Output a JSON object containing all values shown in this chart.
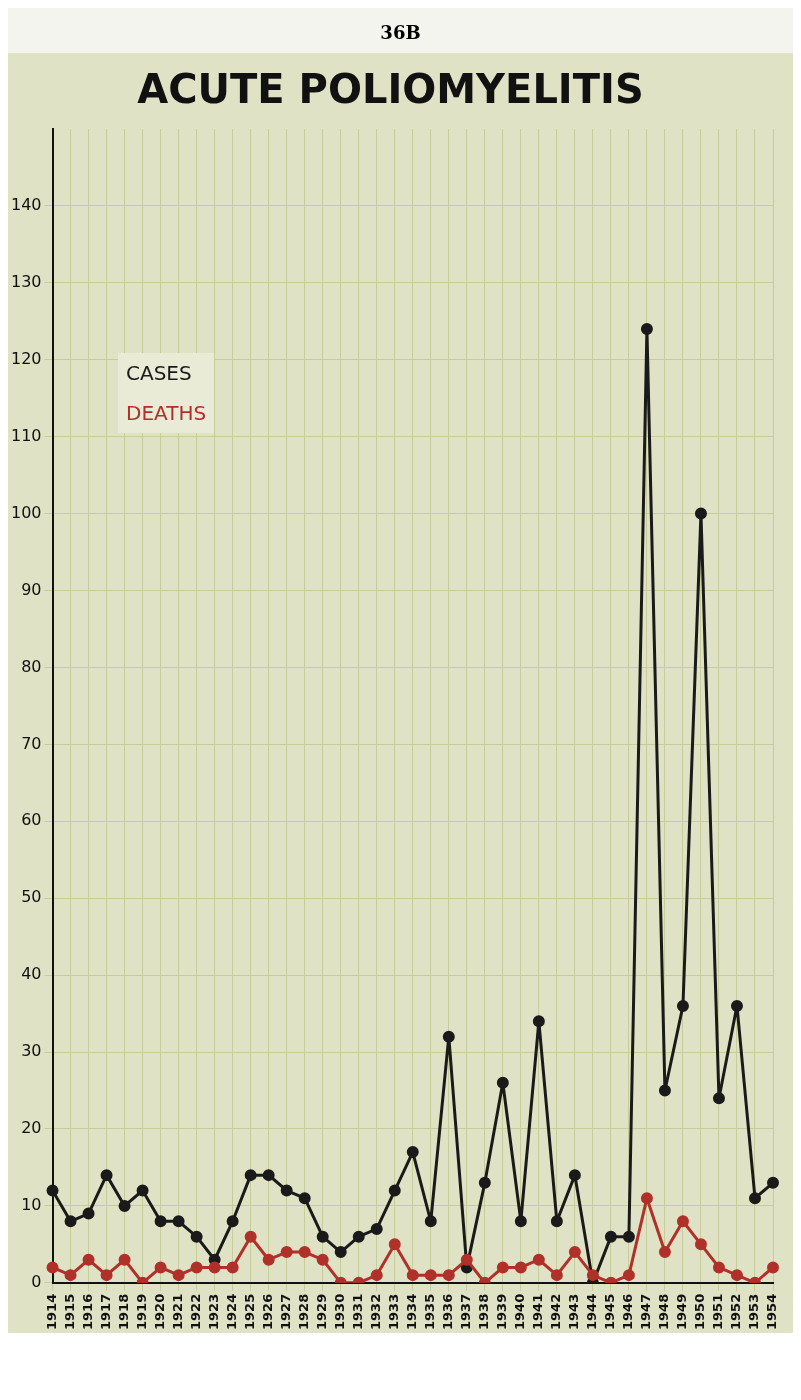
{
  "chart_data": {
    "type": "line",
    "title": "ACUTE POLIOMYELITIS",
    "annotations": [
      "36B"
    ],
    "categories": [
      "1914",
      "1915",
      "1916",
      "1917",
      "1918",
      "1919",
      "1920",
      "1921",
      "1922",
      "1923",
      "1924",
      "1925",
      "1926",
      "1927",
      "1928",
      "1929",
      "1930",
      "1931",
      "1932",
      "1933",
      "1934",
      "1935",
      "1936",
      "1937",
      "1938",
      "1939",
      "1940",
      "1941",
      "1942",
      "1943",
      "1944",
      "1945",
      "1946",
      "1947",
      "1948",
      "1949",
      "1950",
      "1951",
      "1952",
      "1953",
      "1954"
    ],
    "series": [
      {
        "name": "CASES",
        "color": "#1a1a1a",
        "values": [
          12,
          8,
          9,
          14,
          10,
          12,
          8,
          8,
          6,
          3,
          8,
          14,
          14,
          12,
          11,
          6,
          4,
          6,
          7,
          12,
          17,
          8,
          32,
          2,
          13,
          26,
          8,
          34,
          8,
          14,
          0,
          6,
          6,
          124,
          25,
          36,
          100,
          24,
          36,
          11,
          13
        ]
      },
      {
        "name": "DEATHS",
        "color": "#b0302a",
        "values": [
          2,
          1,
          3,
          1,
          3,
          0,
          2,
          1,
          2,
          2,
          2,
          6,
          3,
          4,
          4,
          3,
          0,
          0,
          1,
          5,
          1,
          1,
          1,
          3,
          0,
          2,
          2,
          3,
          1,
          4,
          1,
          0,
          1,
          11,
          4,
          8,
          5,
          2,
          1,
          0,
          2
        ]
      }
    ],
    "ylim": [
      0,
      150
    ],
    "yticks": [
      0,
      10,
      20,
      30,
      40,
      50,
      60,
      70,
      80,
      90,
      100,
      110,
      120,
      130,
      140
    ],
    "grid": true,
    "legend": "top left",
    "marker": "circle",
    "line_style": "solid"
  }
}
